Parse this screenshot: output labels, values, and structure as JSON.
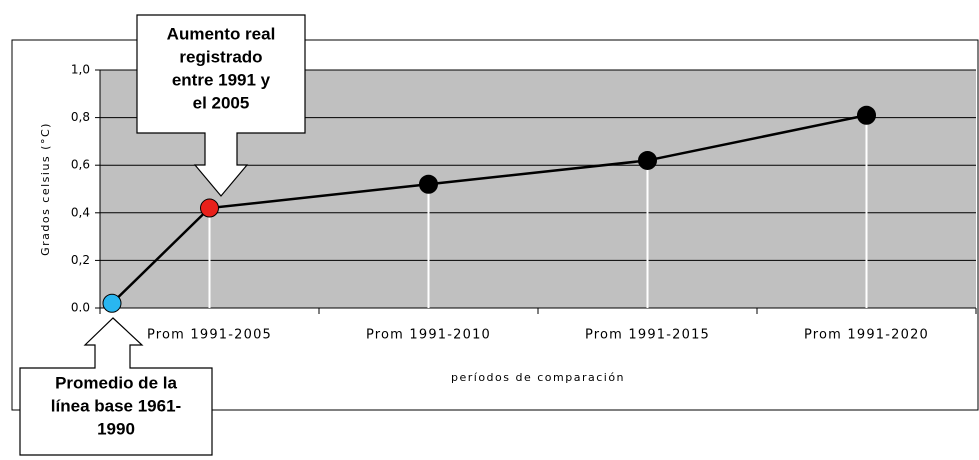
{
  "chart_data": {
    "type": "line",
    "categories": [
      null,
      "Prom 1991-2005",
      "Prom 1991-2010",
      "Prom 1991-2015",
      "Prom 1991-2020"
    ],
    "values": [
      0.02,
      0.42,
      0.52,
      0.62,
      0.81
    ],
    "point_colors": [
      "#29b6f0",
      "#e8201a",
      "#000000",
      "#000000",
      "#000000"
    ],
    "color": "#000000",
    "ylim": [
      0,
      1
    ],
    "yticks": [
      {
        "value": 0,
        "label": "0.0"
      },
      {
        "value": 0.2,
        "label": "0,2"
      },
      {
        "value": 0.4,
        "label": "0,4"
      },
      {
        "value": 0.6,
        "label": "0,6"
      },
      {
        "value": 0.8,
        "label": "0,8"
      },
      {
        "value": 1,
        "label": "1,0"
      }
    ],
    "grid": true,
    "y_label": "Grados celsius (°C)",
    "x_label": "períodos de comparación",
    "annotations": [
      {
        "lines": [
          "Aumento real",
          "registrado",
          "entre 1991 y",
          "el 2005"
        ]
      },
      {
        "lines": [
          "Promedio de la",
          "línea base 1961-",
          "1990"
        ]
      }
    ]
  }
}
